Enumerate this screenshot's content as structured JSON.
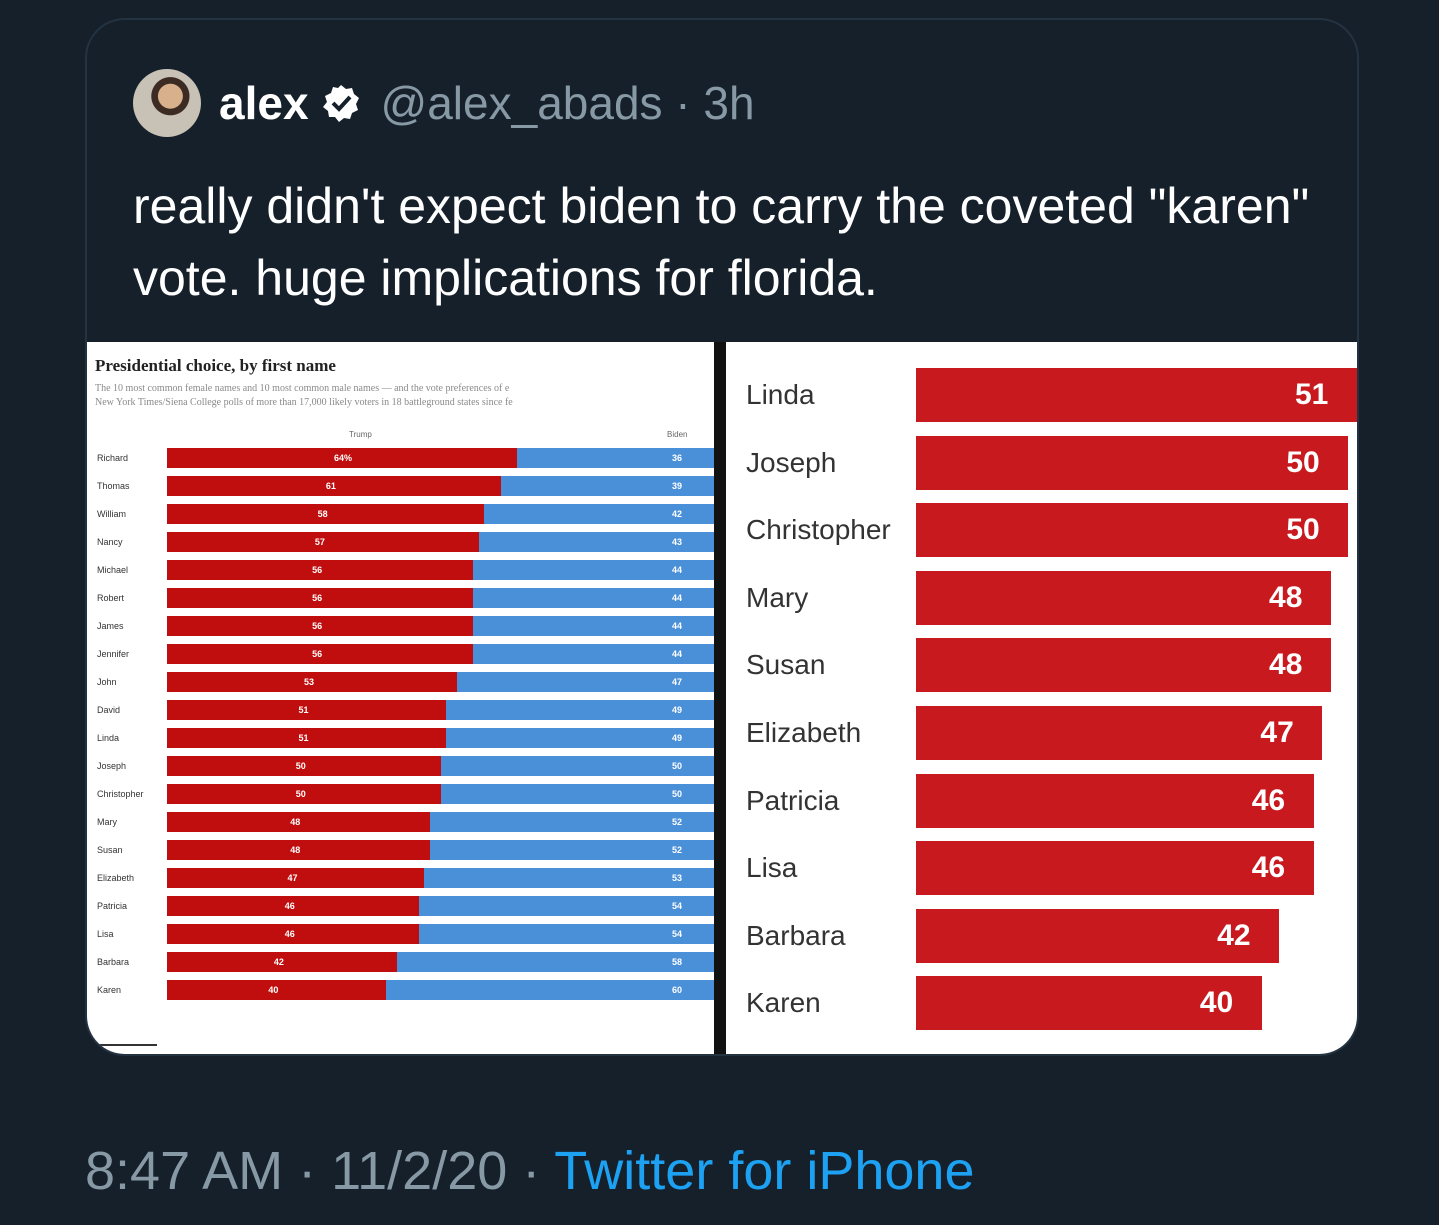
{
  "tweet": {
    "display_name": "alex",
    "handle_line": "@alex_abads · 3h",
    "text": "really didn't expect biden to carry the coveted \"karen\" vote. huge implications for florida.",
    "footer_time": "8:47 AM · 11/2/20 · ",
    "footer_source": "Twitter for iPhone"
  },
  "colors": {
    "background": "#15202b",
    "trump": "#c00d0d",
    "biden": "#4a90d9",
    "link": "#1da1f2"
  },
  "left_chart": {
    "title": "Presidential choice, by first name",
    "subtitle_1": "The 10 most common female names and 10 most common male names — and the vote preferences of e",
    "subtitle_2": "New York Times/Siena College polls of more than 17,000 likely voters in 18 battleground states since fe",
    "col_trump": "Trump",
    "col_biden": "Biden"
  },
  "chart_data": [
    {
      "type": "bar",
      "title": "Presidential choice, by first name",
      "categories": [
        "Richard",
        "Thomas",
        "William",
        "Nancy",
        "Michael",
        "Robert",
        "James",
        "Jennifer",
        "John",
        "David",
        "Linda",
        "Joseph",
        "Christopher",
        "Mary",
        "Susan",
        "Elizabeth",
        "Patricia",
        "Lisa",
        "Barbara",
        "Karen"
      ],
      "series": [
        {
          "name": "Trump",
          "labels": [
            "64%",
            "61",
            "58",
            "57",
            "56",
            "56",
            "56",
            "56",
            "53",
            "51",
            "51",
            "50",
            "50",
            "48",
            "48",
            "47",
            "46",
            "46",
            "42",
            "40"
          ],
          "values": [
            64,
            61,
            58,
            57,
            56,
            56,
            56,
            56,
            53,
            51,
            51,
            50,
            50,
            48,
            48,
            47,
            46,
            46,
            42,
            40
          ]
        },
        {
          "name": "Biden",
          "labels": [
            "36",
            "39",
            "42",
            "43",
            "44",
            "44",
            "44",
            "44",
            "47",
            "49",
            "49",
            "50",
            "50",
            "52",
            "52",
            "53",
            "54",
            "54",
            "58",
            "60"
          ],
          "values": [
            36,
            39,
            42,
            43,
            44,
            44,
            44,
            44,
            47,
            49,
            49,
            50,
            50,
            52,
            52,
            53,
            54,
            54,
            58,
            60
          ]
        }
      ],
      "stacked": true,
      "xlim": [
        0,
        100
      ]
    },
    {
      "type": "bar",
      "categories": [
        "Linda",
        "Joseph",
        "Christopher",
        "Mary",
        "Susan",
        "Elizabeth",
        "Patricia",
        "Lisa",
        "Barbara",
        "Karen"
      ],
      "values": [
        51,
        50,
        50,
        48,
        48,
        47,
        46,
        46,
        42,
        40
      ]
    }
  ]
}
